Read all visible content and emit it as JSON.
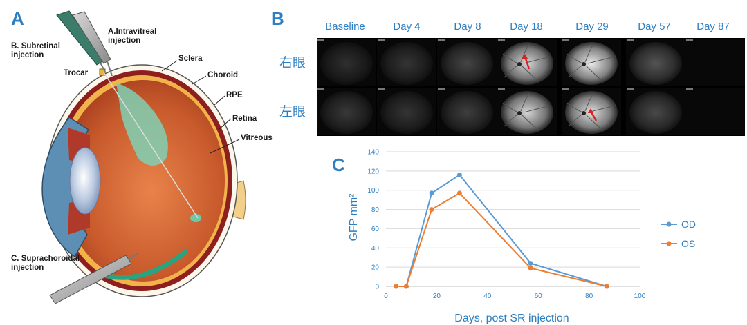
{
  "panels": {
    "a": "A",
    "b": "B",
    "c": "C"
  },
  "eye_labels": {
    "intravitreal": [
      "A.Intravitreal",
      "injection"
    ],
    "subretinal": [
      "B. Subretinal",
      "injection"
    ],
    "trocar": "Trocar",
    "sclera": "Sclera",
    "choroid": "Choroid",
    "rpe": "RPE",
    "retina": "Retina",
    "vitreous": "Vitreous",
    "suprachoroidal": [
      "C. Suprachoroidal",
      "injection"
    ]
  },
  "fundus": {
    "days": [
      "Baseline",
      "Day 4",
      "Day 8",
      "Day 18",
      "Day 29",
      "Day 57",
      "Day 87"
    ],
    "rows": [
      "右眼",
      "左眼"
    ],
    "brightness": {
      "right_eye": [
        0.08,
        0.1,
        0.18,
        0.85,
        0.95,
        0.25,
        0.0
      ],
      "left_eye": [
        0.12,
        0.1,
        0.15,
        0.85,
        0.9,
        0.2,
        0.0
      ]
    }
  },
  "colors": {
    "accent": "#2e7fc2",
    "od": "#5b9bd5",
    "os": "#ed7d31",
    "arrow": "#e02020"
  },
  "chart_data": {
    "type": "line",
    "xlabel": "Days, post SR injection",
    "ylabel": "GFP mm²",
    "xlim": [
      0,
      100
    ],
    "ylim": [
      0,
      140
    ],
    "xticks": [
      0,
      20,
      40,
      60,
      80,
      100
    ],
    "yticks": [
      0,
      20,
      40,
      60,
      80,
      100,
      120,
      140
    ],
    "grid": "horizontal",
    "legend_position": "right",
    "series": [
      {
        "name": "OD",
        "x": [
          4,
          8,
          18,
          29,
          57,
          87
        ],
        "y": [
          0,
          0,
          97,
          116,
          24,
          0
        ]
      },
      {
        "name": "OS",
        "x": [
          4,
          8,
          18,
          29,
          57,
          87
        ],
        "y": [
          0,
          0,
          80,
          97,
          19,
          0
        ]
      }
    ]
  }
}
